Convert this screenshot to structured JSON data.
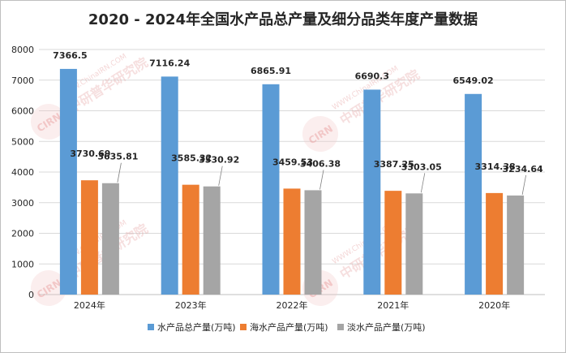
{
  "chart_data": {
    "type": "bar",
    "title": "2020 - 2024年全国水产品总产量及细分品类年度产量数据",
    "categories": [
      "2024年",
      "2023年",
      "2022年",
      "2021年",
      "2020年"
    ],
    "series": [
      {
        "name": "水产品总产量(万吨)",
        "color": "#5b9bd5",
        "values": [
          7366.5,
          7116.24,
          6865.91,
          6690.3,
          6549.02
        ],
        "labels": [
          "7366.5",
          "7116.24",
          "6865.91",
          "6690.3",
          "6549.02"
        ]
      },
      {
        "name": "海水产品产量(万吨)",
        "color": "#ed7d31",
        "values": [
          3730.69,
          3585.32,
          3459.53,
          3387.25,
          3314.38
        ],
        "labels": [
          "3730.69",
          "3585.32",
          "3459.53",
          "3387.25",
          "3314.38"
        ]
      },
      {
        "name": "淡水产品产量(万吨)",
        "color": "#a5a5a5",
        "values": [
          3635.81,
          3530.92,
          3406.38,
          3303.05,
          3234.64
        ],
        "labels": [
          "3635.81",
          "3530.92",
          "3406.38",
          "3303.05",
          "3234.64"
        ]
      }
    ],
    "ylim": [
      0,
      8000
    ],
    "yticks": [
      0,
      1000,
      2000,
      3000,
      4000,
      5000,
      6000,
      7000,
      8000
    ],
    "grid": true,
    "legend_position": "bottom"
  },
  "watermark": {
    "text": "中研普华研究院",
    "url_text": "WWW.ChinaIRN.COM",
    "logo_text": "CIRN"
  }
}
